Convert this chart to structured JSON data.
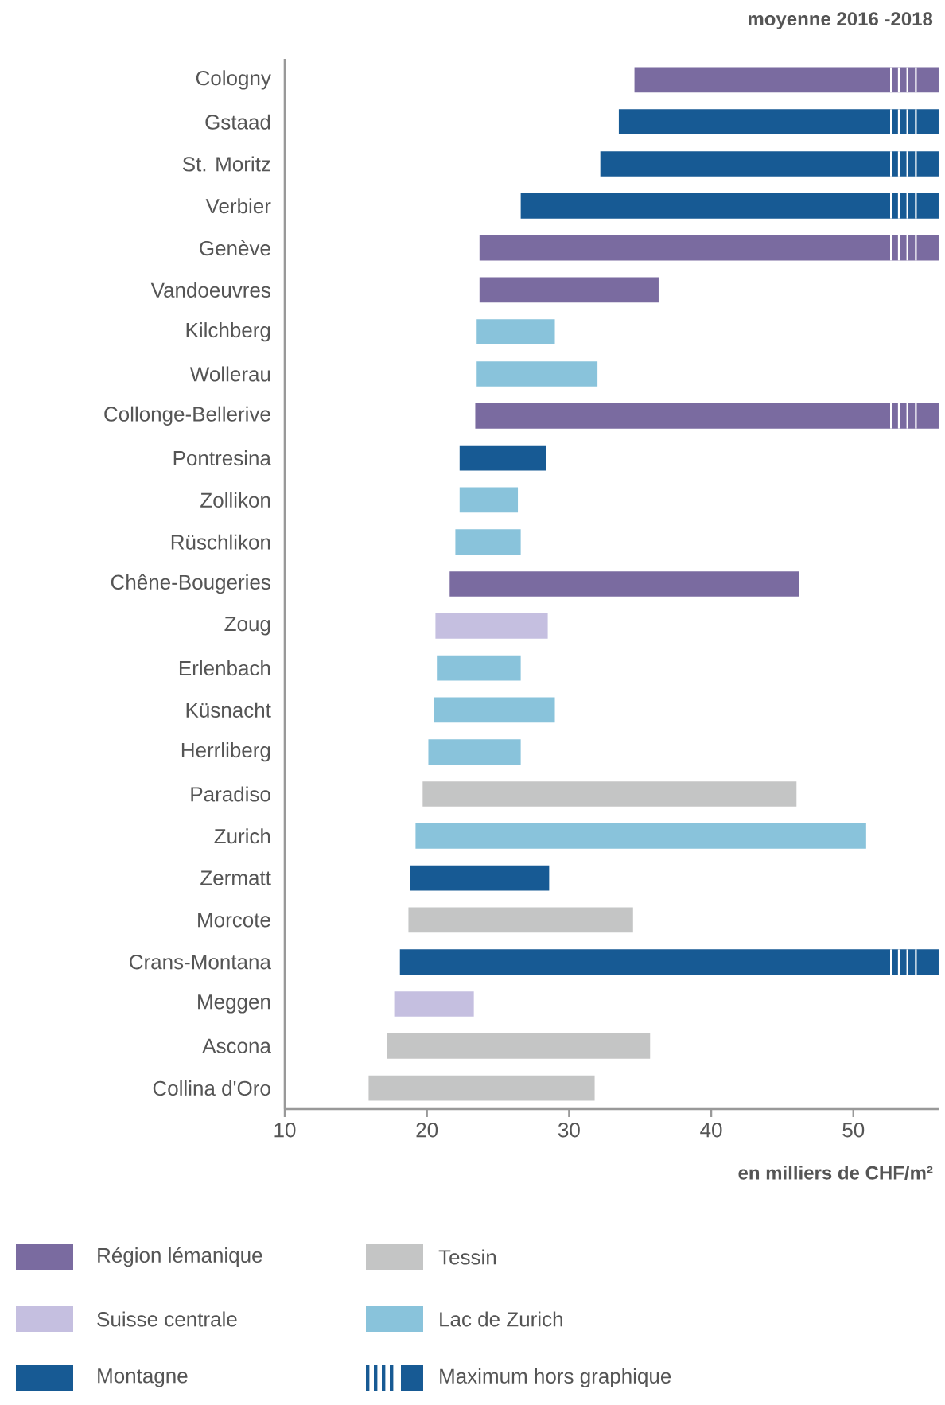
{
  "chart_data": {
    "type": "bar",
    "orientation": "horizontal",
    "title": "moyenne 2016 -2018",
    "xlabel": "en milliers de CHF/m²",
    "categories": [
      "Cologny",
      "Gstaad",
      "St. Moritz",
      "Verbier",
      "Genève",
      "Vandoeuvres",
      "Kilchberg",
      "Wollerau",
      "Collonge-Bellerive",
      "Pontresina",
      "Zollikon",
      "Rüschlikon",
      "Chêne-Bougeries",
      "Zoug",
      "Erlenbach",
      "Küsnacht",
      "Herrliberg",
      "Paradiso",
      "Zurich",
      "Zermatt",
      "Morcote",
      "Crans-Montana",
      "Meggen",
      "Ascona",
      "Collina d'Oro"
    ],
    "series": [
      {
        "name": "Région lémanique",
        "color": "#7a6ba0",
        "base": [
          34.6,
          null,
          null,
          null,
          23.7,
          23.7,
          null,
          null,
          23.4,
          null,
          null,
          null,
          21.6,
          null,
          null,
          null,
          null,
          null,
          null,
          null,
          null,
          null,
          null,
          null,
          null
        ],
        "values": [
          21.4,
          null,
          null,
          null,
          32.3,
          12.6,
          null,
          null,
          32.6,
          null,
          null,
          null,
          24.6,
          null,
          null,
          null,
          null,
          null,
          null,
          null,
          null,
          null,
          null,
          null,
          null
        ]
      },
      {
        "name": "Tessin",
        "color": "#c4c5c5",
        "base": [
          null,
          null,
          null,
          null,
          null,
          null,
          null,
          null,
          null,
          null,
          null,
          null,
          null,
          null,
          null,
          null,
          null,
          19.7,
          null,
          null,
          18.7,
          null,
          null,
          17.2,
          15.9
        ],
        "values": [
          null,
          null,
          null,
          null,
          null,
          null,
          null,
          null,
          null,
          null,
          null,
          null,
          null,
          null,
          null,
          null,
          null,
          26.3,
          null,
          null,
          15.8,
          null,
          null,
          18.5,
          15.9
        ]
      },
      {
        "name": "Suisse centrale",
        "color": "#c5bfe0",
        "base": [
          null,
          null,
          null,
          null,
          null,
          null,
          null,
          null,
          null,
          null,
          null,
          null,
          null,
          20.6,
          null,
          null,
          null,
          null,
          null,
          null,
          null,
          null,
          17.7,
          null,
          null
        ],
        "values": [
          null,
          null,
          null,
          null,
          null,
          null,
          null,
          null,
          null,
          null,
          null,
          null,
          null,
          7.9,
          null,
          null,
          null,
          null,
          null,
          null,
          null,
          null,
          5.6,
          null,
          null
        ]
      },
      {
        "name": "Lac de Zurich",
        "color": "#89c3db",
        "base": [
          null,
          null,
          null,
          null,
          null,
          null,
          23.5,
          23.5,
          null,
          null,
          22.3,
          22.0,
          null,
          null,
          20.7,
          20.5,
          20.1,
          null,
          19.2,
          null,
          null,
          null,
          null,
          null,
          null
        ],
        "values": [
          null,
          null,
          null,
          null,
          null,
          null,
          5.5,
          8.5,
          null,
          null,
          4.1,
          4.6,
          null,
          null,
          5.9,
          8.5,
          6.5,
          null,
          31.7,
          null,
          null,
          null,
          null,
          null,
          null
        ]
      },
      {
        "name": "Montagne",
        "color": "#175a94",
        "base": [
          null,
          33.5,
          32.2,
          26.6,
          null,
          null,
          null,
          null,
          null,
          22.3,
          null,
          null,
          null,
          null,
          null,
          null,
          null,
          null,
          null,
          18.8,
          null,
          18.1,
          null,
          null,
          null
        ],
        "values": [
          null,
          22.5,
          23.8,
          29.4,
          null,
          null,
          null,
          null,
          null,
          6.1,
          null,
          null,
          null,
          null,
          null,
          null,
          null,
          null,
          null,
          9.8,
          null,
          37.9,
          null,
          null,
          null
        ]
      }
    ],
    "xlim": [
      10,
      56
    ],
    "xticks": [
      10,
      20,
      30,
      40,
      50
    ],
    "legend": "bottom",
    "annotations": [
      "Maximum hors graphique"
    ]
  }
}
